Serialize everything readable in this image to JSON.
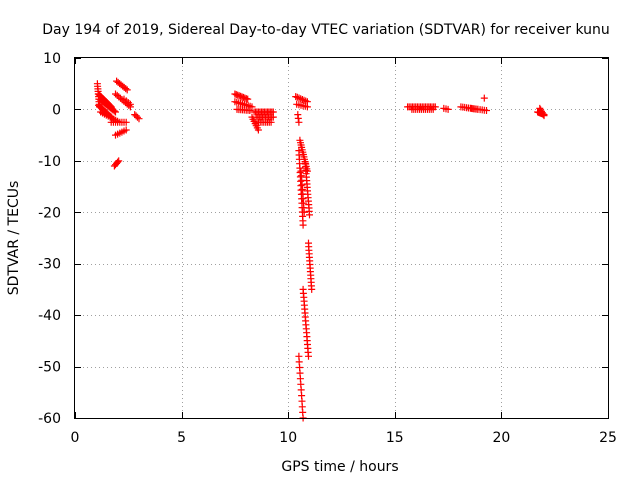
{
  "chart_data": {
    "type": "scatter",
    "title": "Day 194 of 2019, Sidereal Day-to-day VTEC variation (SDTVAR) for receiver kunu",
    "xlabel": "GPS time / hours",
    "ylabel": "SDTVAR / TECUs",
    "xlim": [
      0,
      25
    ],
    "ylim": [
      -60,
      10
    ],
    "xticks": [
      0,
      5,
      10,
      15,
      20,
      25
    ],
    "yticks": [
      10,
      0,
      -10,
      -20,
      -30,
      -40,
      -50,
      -60
    ],
    "grid": true,
    "marker": "+",
    "color": "#ff0000",
    "segments": [
      {
        "x0": 1.05,
        "x1": 1.15,
        "y0": 5.0,
        "y1": 0.5,
        "n": 10
      },
      {
        "x0": 1.1,
        "x1": 1.7,
        "y0": 3.0,
        "y1": 0.5,
        "n": 14
      },
      {
        "x0": 1.15,
        "x1": 1.9,
        "y0": 2.0,
        "y1": -0.5,
        "n": 14
      },
      {
        "x0": 1.1,
        "x1": 1.7,
        "y0": 0.8,
        "y1": -1.5,
        "n": 12
      },
      {
        "x0": 1.2,
        "x1": 2.0,
        "y0": -0.5,
        "y1": -2.3,
        "n": 10
      },
      {
        "x0": 1.7,
        "x1": 2.4,
        "y0": -2.5,
        "y1": -2.5,
        "n": 8
      },
      {
        "x0": 1.9,
        "x1": 2.4,
        "y0": -5.0,
        "y1": -4.0,
        "n": 6
      },
      {
        "x0": 1.85,
        "x1": 2.05,
        "y0": -11.0,
        "y1": -10.0,
        "n": 5
      },
      {
        "x0": 1.95,
        "x1": 2.45,
        "y0": 5.5,
        "y1": 3.8,
        "n": 8
      },
      {
        "x0": 1.9,
        "x1": 2.6,
        "y0": 3.0,
        "y1": 0.5,
        "n": 10
      },
      {
        "x0": 2.3,
        "x1": 2.6,
        "y0": 2.0,
        "y1": 1.0,
        "n": 4
      },
      {
        "x0": 2.8,
        "x1": 3.0,
        "y0": -1.0,
        "y1": -1.8,
        "n": 4
      },
      {
        "x0": 7.5,
        "x1": 8.1,
        "y0": 3.0,
        "y1": 2.0,
        "n": 10
      },
      {
        "x0": 7.5,
        "x1": 8.3,
        "y0": 1.5,
        "y1": 0.5,
        "n": 10
      },
      {
        "x0": 7.6,
        "x1": 8.2,
        "y0": 0.0,
        "y1": -0.2,
        "n": 8
      },
      {
        "x0": 8.3,
        "x1": 8.6,
        "y0": -1.5,
        "y1": -4.0,
        "n": 7
      },
      {
        "x0": 8.4,
        "x1": 9.3,
        "y0": -0.5,
        "y1": -0.5,
        "n": 14
      },
      {
        "x0": 8.5,
        "x1": 9.3,
        "y0": -1.5,
        "y1": -1.5,
        "n": 12
      },
      {
        "x0": 8.6,
        "x1": 9.2,
        "y0": -2.5,
        "y1": -2.5,
        "n": 8
      },
      {
        "x0": 10.35,
        "x1": 10.9,
        "y0": 2.5,
        "y1": 1.5,
        "n": 8
      },
      {
        "x0": 10.4,
        "x1": 10.9,
        "y0": 1.0,
        "y1": 0.5,
        "n": 6
      },
      {
        "x0": 10.45,
        "x1": 10.5,
        "y0": -1.0,
        "y1": -2.5,
        "n": 3
      },
      {
        "x0": 10.55,
        "x1": 10.9,
        "y0": -6.0,
        "y1": -12.0,
        "n": 14
      },
      {
        "x0": 10.5,
        "x1": 10.7,
        "y0": -8.0,
        "y1": -22.5,
        "n": 18
      },
      {
        "x0": 10.6,
        "x1": 10.75,
        "y0": -12.0,
        "y1": -20.0,
        "n": 10
      },
      {
        "x0": 10.8,
        "x1": 11.0,
        "y0": -10.5,
        "y1": -20.5,
        "n": 16
      },
      {
        "x0": 10.95,
        "x1": 11.1,
        "y0": -26.0,
        "y1": -35.0,
        "n": 14
      },
      {
        "x0": 10.7,
        "x1": 10.95,
        "y0": -35.0,
        "y1": -48.0,
        "n": 18
      },
      {
        "x0": 10.5,
        "x1": 10.7,
        "y0": -48.0,
        "y1": -60.0,
        "n": 12
      },
      {
        "x0": 15.6,
        "x1": 16.9,
        "y0": 0.5,
        "y1": 0.5,
        "n": 18
      },
      {
        "x0": 15.8,
        "x1": 16.8,
        "y0": 0.0,
        "y1": 0.0,
        "n": 12
      },
      {
        "x0": 17.3,
        "x1": 17.5,
        "y0": 0.2,
        "y1": 0.0,
        "n": 3
      },
      {
        "x0": 18.1,
        "x1": 18.9,
        "y0": 0.5,
        "y1": 0.0,
        "n": 10
      },
      {
        "x0": 18.6,
        "x1": 19.3,
        "y0": 0.2,
        "y1": -0.2,
        "n": 8
      },
      {
        "x0": 19.2,
        "x1": 19.3,
        "y0": 2.2,
        "y1": 2.2,
        "n": 1
      },
      {
        "x0": 21.7,
        "x1": 22.0,
        "y0": -0.5,
        "y1": -1.0,
        "n": 8
      },
      {
        "x0": 21.8,
        "x1": 22.0,
        "y0": 0.2,
        "y1": -1.2,
        "n": 6
      }
    ]
  }
}
